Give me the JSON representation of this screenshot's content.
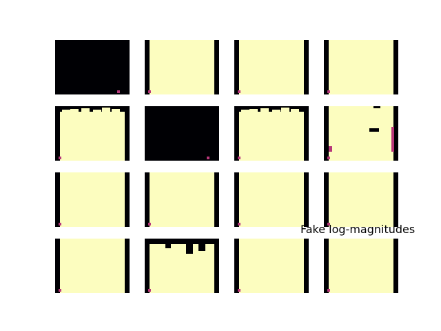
{
  "chart_data": {
    "type": "heatmap",
    "title": "Fake log-magnitudes",
    "xlabel": "",
    "ylabel": "",
    "grid": false,
    "layout": {
      "rows": 4,
      "cols": 4
    },
    "colormap": {
      "name": "magma",
      "low": "#000004",
      "mid": "#b73779",
      "high": "#fcfdbf"
    },
    "panels": [
      {
        "row": 0,
        "col": 0,
        "fill": "dark"
      },
      {
        "row": 0,
        "col": 1,
        "fill": "bright"
      },
      {
        "row": 0,
        "col": 2,
        "fill": "bright"
      },
      {
        "row": 0,
        "col": 3,
        "fill": "bright"
      },
      {
        "row": 1,
        "col": 0,
        "fill": "bright-notched"
      },
      {
        "row": 1,
        "col": 1,
        "fill": "dark"
      },
      {
        "row": 1,
        "col": 2,
        "fill": "bright-notched"
      },
      {
        "row": 1,
        "col": 3,
        "fill": "bright-speckled"
      },
      {
        "row": 2,
        "col": 0,
        "fill": "bright"
      },
      {
        "row": 2,
        "col": 1,
        "fill": "bright"
      },
      {
        "row": 2,
        "col": 2,
        "fill": "bright"
      },
      {
        "row": 2,
        "col": 3,
        "fill": "bright"
      },
      {
        "row": 3,
        "col": 0,
        "fill": "bright"
      },
      {
        "row": 3,
        "col": 1,
        "fill": "bright-notched-deep"
      },
      {
        "row": 3,
        "col": 2,
        "fill": "bright"
      },
      {
        "row": 3,
        "col": 3,
        "fill": "bright"
      }
    ]
  }
}
